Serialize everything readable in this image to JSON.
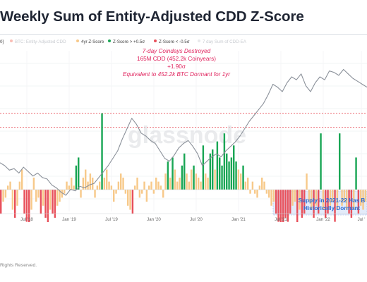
{
  "title": "Weekly Sum of Entity-Adjusted CDD Z-Score",
  "legend": {
    "items": [
      {
        "label": "BTC: Entity-Adjusted CDD",
        "color": "#f26d5b",
        "faded": true
      },
      {
        "label": "4yr Z-Score",
        "color": "#f7c98a",
        "faded": false
      },
      {
        "label": "Z-Score > +0.5σ",
        "color": "#1aa655",
        "faded": false
      },
      {
        "label": "Z-Score < -0.5σ",
        "color": "#e8505b",
        "faded": false
      },
      {
        "label": "7 day Sum of CDD-EA",
        "color": "#c9cdd3",
        "faded": true
      }
    ],
    "partial_left": "0]"
  },
  "annotation": {
    "heading": "7-day Coindays Destroyed",
    "line2": "165M CDD (452.2k Coinyears)",
    "line3": "+1.90σ",
    "line4": "Equivalent to 452.2k BTC Dormant for 1yr"
  },
  "callout": {
    "line1": "Supply in 2021-22 Has B",
    "line2": "Historically Dormant"
  },
  "watermark": "glassnode",
  "footer": "Rights Reserved.",
  "colors": {
    "positive": "#1aa655",
    "negative": "#e8505b",
    "neutral": "#f7c98a",
    "price": "#8a9099",
    "annotation_red": "#e0245e",
    "callout_blue": "#2d6fd6",
    "callout_fill": "#e3ebfa"
  },
  "chart_data": {
    "type": "bar",
    "x_ticks": [
      "Jul '18",
      "Jan '19",
      "Jul '19",
      "Jan '20",
      "Jul '20",
      "Jan '21",
      "Jul '21",
      "Jan '22",
      "Jul '"
    ],
    "y_axis_labels": false,
    "grid": true,
    "threshold_lines": [
      "+1.90σ",
      "+0.5σ"
    ],
    "series": [
      {
        "name": "4yr Z-Score",
        "values": [
          -0.6,
          -0.3,
          -0.2,
          0.1,
          0.2,
          -0.5,
          -0.7,
          -0.4,
          0.2,
          0.5,
          -0.6,
          -0.8,
          -0.9,
          -0.5,
          0.3,
          -0.3,
          -0.2,
          -0.6,
          -0.4,
          -0.7,
          -0.9,
          -0.5,
          -0.6,
          -0.7,
          -0.4,
          -0.3,
          -0.2,
          -0.1,
          0.2,
          0.1,
          0.3,
          0.1,
          0.6,
          0.8,
          -0.2,
          0.3,
          0.5,
          0.2,
          0.4,
          0.3,
          -0.2,
          0.1,
          0.2,
          1.9,
          0.3,
          0.5,
          0.2,
          0.1,
          -0.3,
          -0.1,
          0.2,
          0.4,
          0.3,
          -0.1,
          -0.4,
          -0.5,
          -0.6,
          0.1,
          0.3,
          -0.2,
          -0.1,
          0.2,
          -0.3,
          0.1,
          0.2,
          -0.1,
          0.3,
          0.2,
          0.1,
          -0.2,
          0.4,
          0.7,
          0.3,
          0.8,
          0.5,
          0.2,
          0.3,
          0.6,
          0.9,
          0.4,
          0.2,
          0.5,
          0.6,
          0.4,
          0.3,
          0.2,
          1.1,
          0.4,
          0.3,
          0.9,
          1.0,
          0.5,
          1.2,
          0.8,
          0.6,
          1.4,
          0.9,
          0.7,
          0.8,
          1.1,
          0.7,
          0.5,
          0.4,
          0.6,
          0.2,
          0.3,
          -0.1,
          0.2,
          -0.1,
          -0.2,
          0.1,
          0.3,
          0.2,
          -0.1,
          -0.2,
          -0.4,
          -0.3,
          -0.6,
          -0.8,
          -0.9,
          -1.0,
          -0.7,
          -0.8,
          -0.6,
          -0.4,
          -0.3,
          -0.9,
          -0.5,
          -0.7,
          -0.6,
          0.4,
          -0.3,
          -0.5,
          -0.7,
          -0.4,
          -0.6,
          1.4,
          -0.5,
          -0.7,
          -0.6,
          -0.4,
          -0.3,
          -0.8,
          -0.5,
          1.4,
          -0.4,
          -0.3,
          -0.5,
          -0.6,
          -0.7,
          -0.5,
          0.8,
          -0.6,
          -0.4,
          -0.5,
          -0.3
        ]
      },
      {
        "name": "BTC Price (relative)",
        "values": [
          0.32,
          0.3,
          0.27,
          0.28,
          0.25,
          0.29,
          0.26,
          0.23,
          0.25,
          0.22,
          0.21,
          0.17,
          0.15,
          0.12,
          0.1,
          0.14,
          0.13,
          0.16,
          0.15,
          0.17,
          0.18,
          0.22,
          0.26,
          0.3,
          0.35,
          0.4,
          0.48,
          0.55,
          0.62,
          0.58,
          0.52,
          0.5,
          0.47,
          0.45,
          0.4,
          0.35,
          0.33,
          0.37,
          0.42,
          0.45,
          0.47,
          0.43,
          0.38,
          0.3,
          0.33,
          0.36,
          0.38,
          0.36,
          0.4,
          0.43,
          0.46,
          0.5,
          0.55,
          0.6,
          0.64,
          0.68,
          0.72,
          0.78,
          0.85,
          0.83,
          0.8,
          0.86,
          0.9,
          0.88,
          0.92,
          0.84,
          0.8,
          0.86,
          0.9,
          0.88,
          0.94,
          0.93,
          0.91,
          0.95,
          0.92,
          0.89,
          0.87,
          0.85,
          0.83
        ]
      }
    ]
  }
}
